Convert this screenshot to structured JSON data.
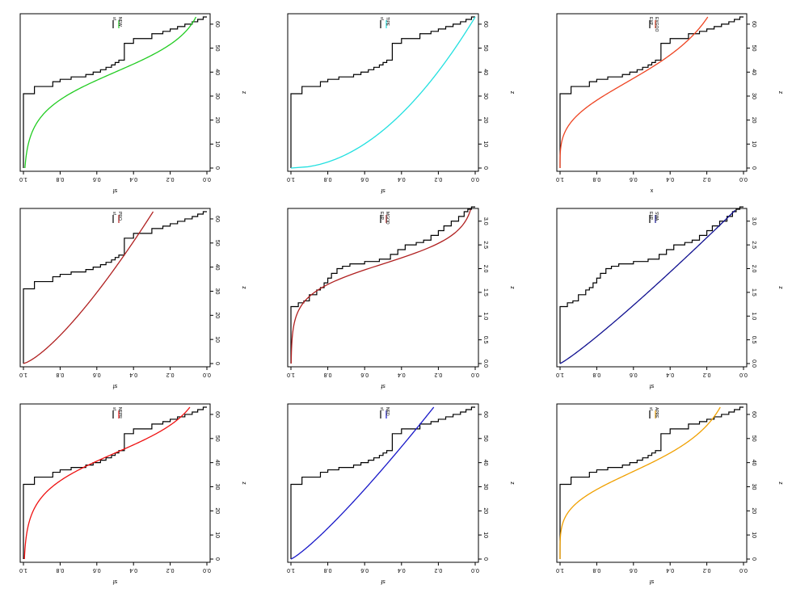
{
  "figure": {
    "rotation_note": "rotated 90 degrees clockwise",
    "colors": {
      "frame": "#000000",
      "empirical": "#000000"
    }
  },
  "chart_data": [
    {
      "type": "line",
      "panel": "top-left",
      "x_label": "z",
      "y_label": "sf",
      "xlim": [
        0,
        63
      ],
      "x_ticks": [
        0,
        10,
        20,
        30,
        40,
        50,
        60
      ],
      "ylim": [
        0,
        1
      ],
      "y_ticks": [
        "0.0",
        "0.2",
        "0.4",
        "0.6",
        "0.8",
        "1.0"
      ],
      "legend": [
        "sf",
        "NEW"
      ],
      "fit": {
        "name": "NEW",
        "color": "#22cc22",
        "kind": "logistic",
        "params": [
          0.12,
          40
        ],
        "x_end": 63
      },
      "step": {
        "x": [
          0,
          30,
          31,
          34,
          36,
          37,
          38,
          39,
          40,
          41,
          42,
          43,
          44,
          45,
          52,
          54,
          56,
          57,
          58,
          59,
          60,
          61,
          62,
          63
        ],
        "y": [
          1.0,
          1.0,
          0.94,
          0.84,
          0.8,
          0.74,
          0.66,
          0.62,
          0.58,
          0.55,
          0.52,
          0.5,
          0.48,
          0.45,
          0.4,
          0.3,
          0.24,
          0.2,
          0.16,
          0.12,
          0.08,
          0.05,
          0.02,
          0.0
        ]
      }
    },
    {
      "type": "line",
      "panel": "top-middle",
      "x_label": "z",
      "y_label": "sf",
      "xlim": [
        0,
        63
      ],
      "x_ticks": [
        0,
        10,
        20,
        30,
        40,
        50,
        60
      ],
      "ylim": [
        0,
        1
      ],
      "y_ticks": [
        "0.0",
        "0.2",
        "0.4",
        "0.6",
        "0.8",
        "1.0"
      ],
      "legend": [
        "sf",
        "TIPE"
      ],
      "fit": {
        "name": "TIPE",
        "color": "#22e0e0",
        "kind": "sqrt",
        "params": [
          63
        ],
        "x_end": 63
      },
      "step": {
        "x": [
          0,
          30,
          31,
          34,
          36,
          37,
          38,
          39,
          40,
          41,
          42,
          43,
          44,
          45,
          52,
          54,
          56,
          57,
          58,
          59,
          60,
          61,
          62,
          63
        ],
        "y": [
          1.0,
          1.0,
          0.94,
          0.84,
          0.8,
          0.74,
          0.66,
          0.62,
          0.58,
          0.55,
          0.52,
          0.5,
          0.48,
          0.45,
          0.4,
          0.3,
          0.24,
          0.2,
          0.16,
          0.12,
          0.08,
          0.05,
          0.02,
          0.0
        ]
      }
    },
    {
      "type": "line",
      "panel": "top-right",
      "x_label": "z",
      "y_label": "x",
      "xlim": [
        0,
        63
      ],
      "x_ticks": [
        0,
        10,
        20,
        30,
        40,
        50,
        60
      ],
      "ylim": [
        0,
        1
      ],
      "y_ticks": [
        "0.0",
        "0.2",
        "0.4",
        "0.6",
        "0.8",
        "1.0"
      ],
      "legend": [
        "EXP",
        "EXGOO"
      ],
      "fit": {
        "name": "EXGOO",
        "color": "#ee4422",
        "kind": "sigmoid",
        "params": [
          42,
          14
        ],
        "x_end": 63
      },
      "step": {
        "x": [
          0,
          30,
          31,
          34,
          36,
          37,
          38,
          39,
          40,
          41,
          42,
          43,
          44,
          45,
          52,
          54,
          56,
          57,
          58,
          59,
          60,
          61,
          62,
          63
        ],
        "y": [
          1.0,
          1.0,
          0.94,
          0.84,
          0.8,
          0.74,
          0.66,
          0.62,
          0.58,
          0.55,
          0.52,
          0.5,
          0.48,
          0.45,
          0.4,
          0.3,
          0.24,
          0.2,
          0.16,
          0.12,
          0.08,
          0.05,
          0.02,
          0.0
        ]
      }
    },
    {
      "type": "line",
      "panel": "middle-left",
      "x_label": "z",
      "y_label": "sf",
      "xlim": [
        0,
        63
      ],
      "x_ticks": [
        0,
        10,
        20,
        30,
        40,
        50,
        60
      ],
      "ylim": [
        0,
        1
      ],
      "y_ticks": [
        "0.0",
        "0.2",
        "0.4",
        "0.6",
        "0.8",
        "1.0"
      ],
      "legend": [
        "sf",
        "PRO"
      ],
      "fit": {
        "name": "PRO",
        "color": "#b02020",
        "kind": "power",
        "params": [
          100,
          0.75
        ],
        "x_end": 63
      },
      "step": {
        "x": [
          0,
          30,
          31,
          34,
          36,
          37,
          38,
          39,
          40,
          41,
          42,
          43,
          44,
          45,
          52,
          54,
          56,
          57,
          58,
          59,
          60,
          61,
          62,
          63
        ],
        "y": [
          1.0,
          1.0,
          0.94,
          0.84,
          0.8,
          0.74,
          0.66,
          0.62,
          0.58,
          0.55,
          0.52,
          0.5,
          0.48,
          0.45,
          0.4,
          0.3,
          0.24,
          0.2,
          0.16,
          0.12,
          0.08,
          0.05,
          0.02,
          0.0
        ]
      }
    },
    {
      "type": "line",
      "panel": "center",
      "x_label": "z",
      "y_label": "sf",
      "xlim": [
        0,
        3.2
      ],
      "x_ticks": [
        0,
        0.5,
        1,
        1.5,
        2,
        2.5,
        3
      ],
      "x_tick_labels": [
        "0.0",
        "0.5",
        "1.0",
        "1.5",
        "2.0",
        "2.5",
        "3.0"
      ],
      "ylim": [
        0,
        1
      ],
      "y_ticks": [
        "0.0",
        "0.2",
        "0.4",
        "0.6",
        "0.8",
        "1.0"
      ],
      "legend": [
        "EXP",
        "MGOD"
      ],
      "fit": {
        "name": "MGOD",
        "color": "#b02020",
        "kind": "logistic",
        "params": [
          3.2,
          2.1
        ],
        "x_end": 3.3
      },
      "step": {
        "x": [
          0,
          1.15,
          1.2,
          1.28,
          1.32,
          1.45,
          1.55,
          1.6,
          1.7,
          1.8,
          1.9,
          2.0,
          2.05,
          2.1,
          2.15,
          2.2,
          2.3,
          2.4,
          2.5,
          2.55,
          2.6,
          2.7,
          2.8,
          2.9,
          3.0,
          3.1,
          3.2,
          3.25,
          3.3
        ],
        "y": [
          1.0,
          1.0,
          0.96,
          0.93,
          0.9,
          0.86,
          0.84,
          0.82,
          0.8,
          0.78,
          0.75,
          0.72,
          0.68,
          0.6,
          0.52,
          0.46,
          0.42,
          0.38,
          0.32,
          0.28,
          0.24,
          0.2,
          0.17,
          0.13,
          0.09,
          0.06,
          0.04,
          0.02,
          0.0
        ]
      }
    },
    {
      "type": "line",
      "panel": "middle-right",
      "x_label": "z",
      "y_label": "sf",
      "xlim": [
        0,
        3.2
      ],
      "x_ticks": [
        0,
        0.5,
        1,
        1.5,
        2,
        2.5,
        3
      ],
      "x_tick_labels": [
        "0.0",
        "0.5",
        "1.0",
        "1.5",
        "2.0",
        "2.5",
        "3.0"
      ],
      "ylim": [
        0,
        1
      ],
      "y_ticks": [
        "0.0",
        "0.2",
        "0.4",
        "0.6",
        "0.8",
        "1.0"
      ],
      "legend": [
        "EXP",
        "SWA"
      ],
      "fit": {
        "name": "SWA",
        "color": "#101090",
        "kind": "power",
        "params": [
          3.4,
          0.9
        ],
        "x_end": 3.4
      },
      "step": {
        "x": [
          0,
          1.15,
          1.2,
          1.28,
          1.32,
          1.45,
          1.55,
          1.6,
          1.7,
          1.8,
          1.9,
          2.0,
          2.05,
          2.1,
          2.15,
          2.2,
          2.3,
          2.4,
          2.5,
          2.55,
          2.6,
          2.7,
          2.8,
          2.9,
          3.0,
          3.1,
          3.2,
          3.25,
          3.3
        ],
        "y": [
          1.0,
          1.0,
          0.96,
          0.93,
          0.9,
          0.86,
          0.84,
          0.82,
          0.8,
          0.78,
          0.75,
          0.72,
          0.68,
          0.6,
          0.52,
          0.46,
          0.42,
          0.38,
          0.32,
          0.28,
          0.24,
          0.2,
          0.17,
          0.13,
          0.09,
          0.06,
          0.04,
          0.02,
          0.0
        ]
      }
    },
    {
      "type": "line",
      "panel": "bottom-left",
      "x_label": "z",
      "y_label": "sf",
      "xlim": [
        0,
        63
      ],
      "x_ticks": [
        0,
        10,
        20,
        30,
        40,
        50,
        60
      ],
      "ylim": [
        0,
        1
      ],
      "y_ticks": [
        "0.0",
        "0.2",
        "0.4",
        "0.6",
        "0.8",
        "1.0"
      ],
      "legend": [
        "sf",
        "NEPR"
      ],
      "fit": {
        "name": "NEPR",
        "color": "#ee1111",
        "kind": "logistic",
        "params": [
          0.12,
          44
        ],
        "x_end": 63
      },
      "step": {
        "x": [
          0,
          30,
          31,
          34,
          36,
          37,
          38,
          39,
          40,
          41,
          42,
          43,
          44,
          45,
          52,
          54,
          56,
          57,
          58,
          59,
          60,
          61,
          62,
          63
        ],
        "y": [
          1.0,
          1.0,
          0.94,
          0.84,
          0.8,
          0.74,
          0.66,
          0.62,
          0.58,
          0.55,
          0.52,
          0.5,
          0.48,
          0.45,
          0.4,
          0.3,
          0.24,
          0.2,
          0.16,
          0.12,
          0.08,
          0.05,
          0.02,
          0.0
        ]
      }
    },
    {
      "type": "line",
      "panel": "bottom-middle",
      "x_label": "z",
      "y_label": "sf",
      "xlim": [
        0,
        63
      ],
      "x_ticks": [
        0,
        10,
        20,
        30,
        40,
        50,
        60
      ],
      "ylim": [
        0,
        1
      ],
      "y_ticks": [
        "0.0",
        "0.2",
        "0.4",
        "0.6",
        "0.8",
        "1.0"
      ],
      "legend": [
        "sf",
        "NED"
      ],
      "fit": {
        "name": "NED",
        "color": "#1818c8",
        "kind": "power",
        "params": [
          85,
          0.85
        ],
        "x_end": 63
      },
      "step": {
        "x": [
          0,
          30,
          31,
          34,
          36,
          37,
          38,
          39,
          40,
          41,
          42,
          43,
          44,
          45,
          52,
          54,
          56,
          57,
          58,
          59,
          60,
          61,
          62,
          63
        ],
        "y": [
          1.0,
          1.0,
          0.94,
          0.84,
          0.8,
          0.74,
          0.66,
          0.62,
          0.58,
          0.55,
          0.52,
          0.5,
          0.48,
          0.45,
          0.4,
          0.3,
          0.24,
          0.2,
          0.16,
          0.12,
          0.08,
          0.05,
          0.02,
          0.0
        ]
      }
    },
    {
      "type": "line",
      "panel": "bottom-right",
      "x_label": "z",
      "y_label": "sf",
      "xlim": [
        0,
        63
      ],
      "x_ticks": [
        0,
        10,
        20,
        30,
        40,
        50,
        60
      ],
      "ylim": [
        0,
        1
      ],
      "y_ticks": [
        "0.0",
        "0.2",
        "0.4",
        "0.6",
        "0.8",
        "1.0"
      ],
      "legend": [
        "sf",
        "APRE"
      ],
      "fit": {
        "name": "APRE",
        "color": "#f0a000",
        "kind": "sigmoid",
        "params": [
          40,
          17
        ],
        "x_end": 63
      },
      "step": {
        "x": [
          0,
          30,
          31,
          34,
          36,
          37,
          38,
          39,
          40,
          41,
          42,
          43,
          44,
          45,
          52,
          54,
          56,
          57,
          58,
          59,
          60,
          61,
          62,
          63
        ],
        "y": [
          1.0,
          1.0,
          0.94,
          0.84,
          0.8,
          0.74,
          0.66,
          0.62,
          0.58,
          0.55,
          0.52,
          0.5,
          0.48,
          0.45,
          0.4,
          0.3,
          0.24,
          0.2,
          0.16,
          0.12,
          0.08,
          0.05,
          0.02,
          0.0
        ]
      }
    }
  ]
}
